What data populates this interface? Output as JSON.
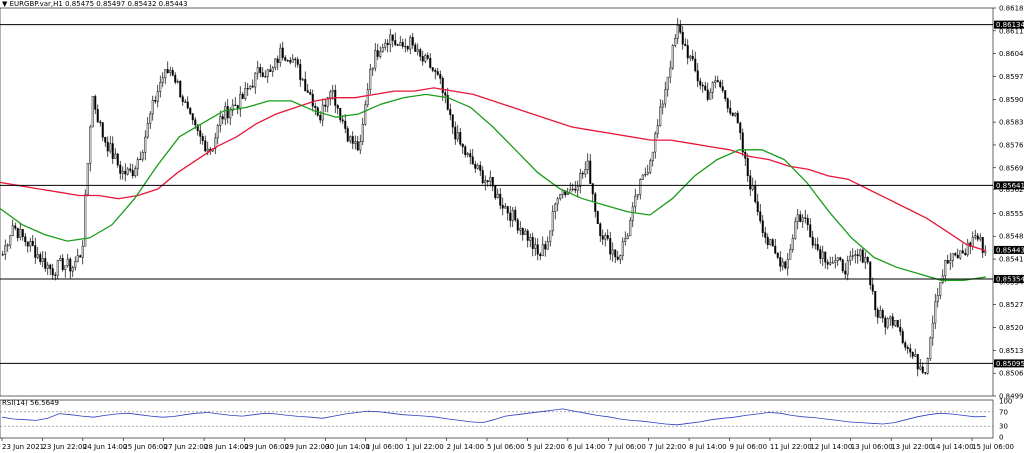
{
  "header": {
    "arrow": "▼",
    "symbol": "EURGBP.var,H1",
    "ohlc": "0.85475 0.85497 0.85432 0.85443"
  },
  "rsi_header": {
    "label": "RSI(14)",
    "value": "56.5649"
  },
  "colors": {
    "bull": "#000000",
    "bear": "#000000",
    "ma_slow": "#e8173a",
    "ma_fast": "#1a9c1a",
    "rsi": "#2a3fbf",
    "level_line": "#000000",
    "label_bg": "#000000",
    "current_label_bg": "#000000"
  },
  "chart_data": {
    "type": "candlestick",
    "symbol": "EURGBP.var",
    "timeframe": "H1",
    "ylim": [
      0.84995,
      0.86185
    ],
    "y_ticks": [
      "0.86185",
      "0.86115",
      "0.86045",
      "0.85975",
      "0.85905",
      "0.85835",
      "0.85765",
      "0.85695",
      "0.85629",
      "0.85555",
      "0.85485",
      "0.85415",
      "0.85345",
      "0.85275",
      "0.85205",
      "0.85135",
      "0.85065",
      "0.84995"
    ],
    "x_ticks": [
      "23 Jun 2021",
      "23 Jun 22:00",
      "24 Jun 14:00",
      "25 Jun 06:00",
      "27 Jun 22:00",
      "28 Jun 14:00",
      "29 Jun 06:00",
      "29 Jun 22:00",
      "30 Jun 14:00",
      "1 Jul 06:00",
      "1 Jul 22:00",
      "2 Jul 14:00",
      "5 Jul 06:00",
      "5 Jul 22:00",
      "6 Jul 14:00",
      "7 Jul 06:00",
      "7 Jul 22:00",
      "8 Jul 14:00",
      "9 Jul 06:00",
      "11 Jul 22:00",
      "12 Jul 14:00",
      "13 Jul 06:00",
      "13 Jul 22:00",
      "14 Jul 14:00",
      "15 Jul 06:00"
    ],
    "horizontal_levels": [
      {
        "value": 0.86134,
        "label": "0.86134"
      },
      {
        "value": 0.85641,
        "label": "0.85641"
      },
      {
        "value": 0.85354,
        "label": "0.85354"
      },
      {
        "value": 0.85095,
        "label": "0.85095"
      }
    ],
    "current_price": {
      "value": 0.85443,
      "label": "0.85443"
    },
    "series_close_path": [
      0.8543,
      0.8552,
      0.8548,
      0.8545,
      0.8541,
      0.8538,
      0.854,
      0.8539,
      0.8544,
      0.8592,
      0.858,
      0.8574,
      0.8568,
      0.8568,
      0.8575,
      0.8587,
      0.8597,
      0.86,
      0.8592,
      0.8583,
      0.8578,
      0.8575,
      0.8585,
      0.8588,
      0.859,
      0.8595,
      0.86,
      0.8598,
      0.8605,
      0.8604,
      0.8598,
      0.8592,
      0.8585,
      0.8595,
      0.8586,
      0.8578,
      0.8575,
      0.86,
      0.8607,
      0.861,
      0.8606,
      0.8608,
      0.8603,
      0.8601,
      0.8596,
      0.8585,
      0.8577,
      0.8572,
      0.8568,
      0.8565,
      0.856,
      0.8556,
      0.8552,
      0.8548,
      0.8542,
      0.8548,
      0.8563,
      0.8562,
      0.8566,
      0.857,
      0.8552,
      0.8546,
      0.8542,
      0.855,
      0.8562,
      0.857,
      0.8582,
      0.8598,
      0.8612,
      0.8605,
      0.8597,
      0.8592,
      0.8596,
      0.859,
      0.8583,
      0.8568,
      0.8558,
      0.8547,
      0.8542,
      0.854,
      0.8555,
      0.8553,
      0.8545,
      0.8542,
      0.854,
      0.8539,
      0.8542,
      0.8543,
      0.8525,
      0.8522,
      0.8524,
      0.8515,
      0.851,
      0.8508,
      0.853,
      0.854,
      0.8542,
      0.8544,
      0.8549,
      0.8544
    ],
    "ma_slow_path": [
      0.8565,
      0.8564,
      0.8563,
      0.8562,
      0.8561,
      0.8561,
      0.856,
      0.8561,
      0.8563,
      0.8568,
      0.8572,
      0.8576,
      0.8579,
      0.8583,
      0.8586,
      0.8588,
      0.859,
      0.8591,
      0.8591,
      0.8592,
      0.8593,
      0.8593,
      0.8594,
      0.8593,
      0.8592,
      0.859,
      0.8588,
      0.8586,
      0.8584,
      0.8582,
      0.8581,
      0.858,
      0.8579,
      0.8578,
      0.8578,
      0.8577,
      0.8576,
      0.8575,
      0.8573,
      0.8572,
      0.857,
      0.8569,
      0.8567,
      0.8566,
      0.8563,
      0.856,
      0.8557,
      0.8554,
      0.855,
      0.8546,
      0.8544
    ],
    "ma_fast_path": [
      0.8557,
      0.8552,
      0.8549,
      0.8547,
      0.8548,
      0.8552,
      0.856,
      0.857,
      0.8579,
      0.8583,
      0.8587,
      0.8588,
      0.859,
      0.859,
      0.8587,
      0.8585,
      0.8586,
      0.8589,
      0.8591,
      0.8592,
      0.8591,
      0.8588,
      0.8582,
      0.8575,
      0.8568,
      0.8563,
      0.856,
      0.8558,
      0.8556,
      0.8555,
      0.856,
      0.8567,
      0.8572,
      0.8575,
      0.8575,
      0.8572,
      0.8565,
      0.8556,
      0.8548,
      0.8542,
      0.8539,
      0.8537,
      0.8535,
      0.8535,
      0.8536
    ],
    "rsi": {
      "name": "RSI(14)",
      "levels": [
        70,
        30
      ],
      "ylim": [
        0,
        100
      ],
      "y_ticks": [
        "100",
        "70",
        "30",
        "0"
      ],
      "last_value": 56.5649,
      "path": [
        55,
        50,
        48,
        46,
        52,
        65,
        62,
        58,
        55,
        60,
        64,
        66,
        62,
        58,
        55,
        57,
        62,
        66,
        68,
        64,
        60,
        58,
        62,
        66,
        64,
        60,
        57,
        55,
        52,
        58,
        64,
        68,
        72,
        70,
        66,
        62,
        60,
        58,
        55,
        50,
        46,
        42,
        40,
        48,
        58,
        62,
        66,
        70,
        74,
        78,
        72,
        66,
        60,
        56,
        50,
        46,
        44,
        40,
        36,
        34,
        38,
        42,
        48,
        52,
        55,
        60,
        64,
        68,
        66,
        60,
        56,
        54,
        50,
        46,
        42,
        40,
        38,
        36,
        40,
        48,
        56,
        62,
        66,
        64,
        60,
        56,
        57
      ]
    }
  },
  "levels_labels": {
    "l1": "0.86134",
    "l2": "0.85641",
    "l3": "0.85354",
    "l4": "0.85095",
    "cur": "0.85443"
  }
}
